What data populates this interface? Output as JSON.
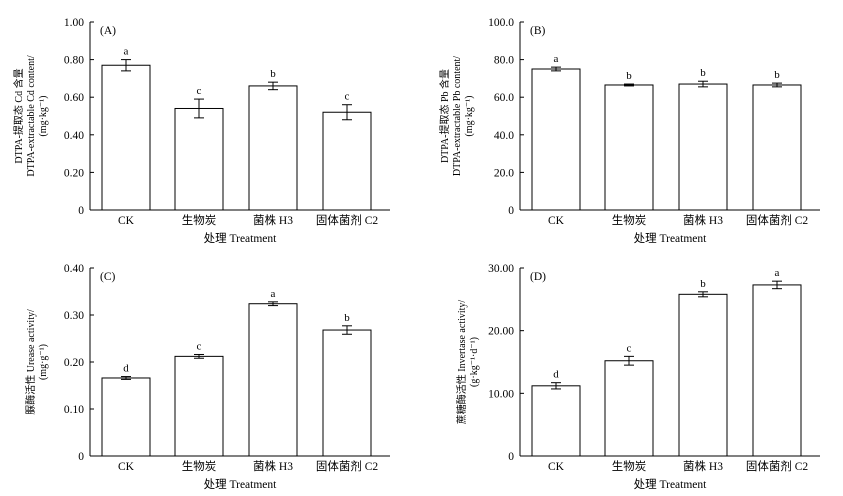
{
  "chart_data": [
    {
      "type": "bar",
      "panel_label": "(A)",
      "categories": [
        "CK",
        "生物炭",
        "菌株 H3",
        "固体菌剂 C2"
      ],
      "values": [
        0.77,
        0.54,
        0.66,
        0.52
      ],
      "errors": [
        0.03,
        0.05,
        0.02,
        0.04
      ],
      "significance": [
        "a",
        "c",
        "b",
        "c"
      ],
      "xlabel": "处理 Treatment",
      "ylabel_lines": [
        "DTPA-提取态 Cd 含量",
        "DTPA-extractable Cd content/",
        "(mg·kg⁻¹)"
      ],
      "ylim": [
        0,
        1.0
      ],
      "yticks": [
        "0",
        "0.20",
        "0.40",
        "0.60",
        "0.80",
        "1.00"
      ],
      "grid": false
    },
    {
      "type": "bar",
      "panel_label": "(B)",
      "categories": [
        "CK",
        "生物炭",
        "菌株 H3",
        "固体菌剂 C2"
      ],
      "values": [
        75.0,
        66.5,
        67.0,
        66.5
      ],
      "errors": [
        1.0,
        0.5,
        1.5,
        1.0
      ],
      "significance": [
        "a",
        "b",
        "b",
        "b"
      ],
      "xlabel": "处理 Treatment",
      "ylabel_lines": [
        "DTPA-提取态 Pb 含量",
        "DTPA-extractable Pb content/",
        "(mg·kg⁻¹)"
      ],
      "ylim": [
        0,
        100
      ],
      "yticks": [
        "0",
        "20.0",
        "40.0",
        "60.0",
        "80.0",
        "100.0"
      ],
      "grid": false
    },
    {
      "type": "bar",
      "panel_label": "(C)",
      "categories": [
        "CK",
        "生物炭",
        "菌株 H3",
        "固体菌剂 C2"
      ],
      "values": [
        0.166,
        0.212,
        0.324,
        0.268
      ],
      "errors": [
        0.003,
        0.004,
        0.004,
        0.009
      ],
      "significance": [
        "d",
        "c",
        "a",
        "b"
      ],
      "xlabel": "处理 Treatment",
      "ylabel_lines": [
        "脲酶活性 Urease activity/",
        "(mg·g⁻¹)"
      ],
      "ylim": [
        0,
        0.4
      ],
      "yticks": [
        "0",
        "0.10",
        "0.20",
        "0.30",
        "0.40"
      ],
      "grid": false
    },
    {
      "type": "bar",
      "panel_label": "(D)",
      "categories": [
        "CK",
        "生物炭",
        "菌株 H3",
        "固体菌剂 C2"
      ],
      "values": [
        11.2,
        15.2,
        25.8,
        27.3
      ],
      "errors": [
        0.5,
        0.7,
        0.4,
        0.6
      ],
      "significance": [
        "d",
        "c",
        "b",
        "a"
      ],
      "xlabel": "处理 Treatment",
      "ylabel_lines": [
        "蔗糖酶活性 Invertase activity/",
        "(g·kg⁻¹·d⁻¹)"
      ],
      "ylim": [
        0,
        30
      ],
      "yticks": [
        "0",
        "10.00",
        "20.00",
        "30.00"
      ],
      "grid": false
    }
  ],
  "style": {
    "bar_fill": "#ffffff",
    "bar_stroke": "#000000",
    "axis_color": "#000000"
  }
}
